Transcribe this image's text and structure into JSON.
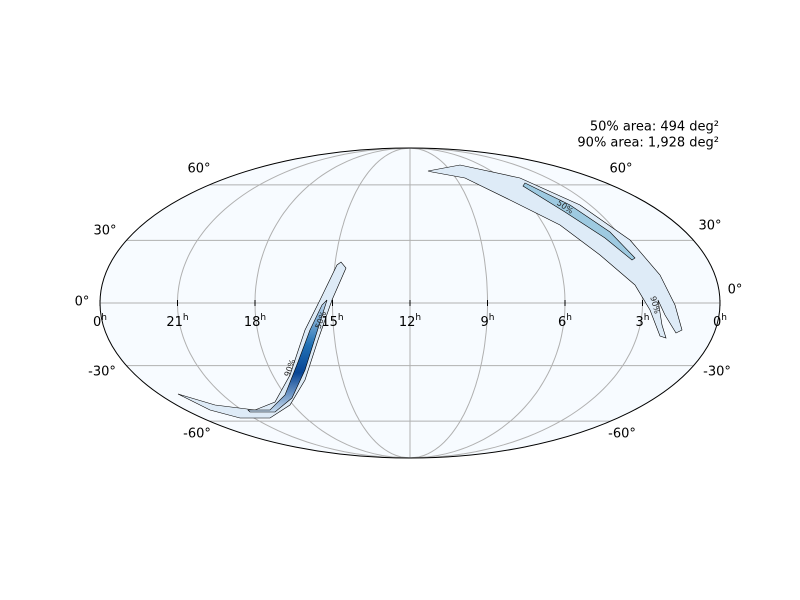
{
  "annotations": {
    "area_50": "50% area: 494 deg²",
    "area_90": "90% area: 1,928 deg²"
  },
  "ra_labels": [
    {
      "hour": "0",
      "unit": "h"
    },
    {
      "hour": "21",
      "unit": "h"
    },
    {
      "hour": "18",
      "unit": "h"
    },
    {
      "hour": "15",
      "unit": "h"
    },
    {
      "hour": "12",
      "unit": "h"
    },
    {
      "hour": "9",
      "unit": "h"
    },
    {
      "hour": "6",
      "unit": "h"
    },
    {
      "hour": "3",
      "unit": "h"
    },
    {
      "hour": "0",
      "unit": "h"
    }
  ],
  "dec_labels_left": [
    "60°",
    "30°",
    "0°",
    "-30°",
    "-60°"
  ],
  "dec_labels_right": [
    "60°",
    "30°",
    "0°",
    "-30°",
    "-60°"
  ],
  "contour_labels": [
    "50%",
    "90%",
    "50%",
    "90%"
  ]
}
